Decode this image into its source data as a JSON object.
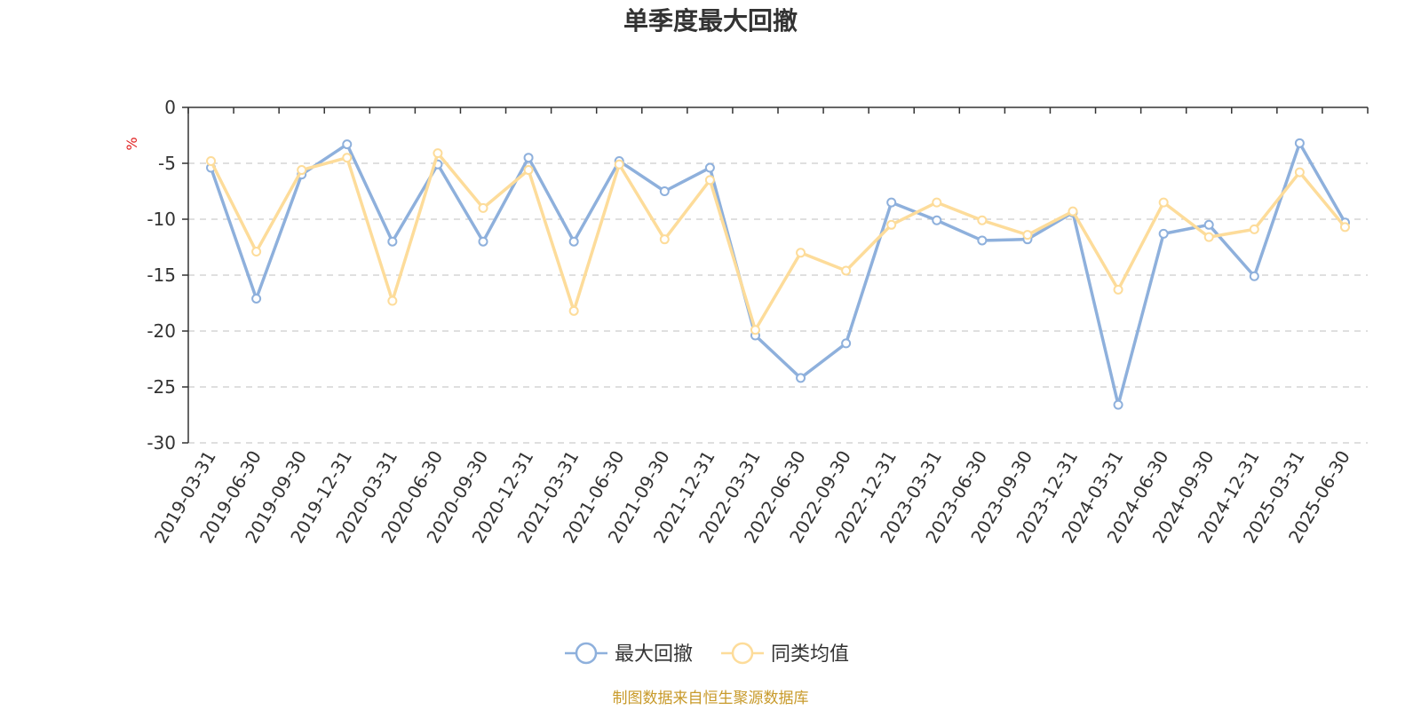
{
  "title": "单季度最大回撤",
  "y_unit": "%",
  "source": "制图数据来自恒生聚源数据库",
  "colors": {
    "series1": "#8eb0dc",
    "series2": "#fddc9a",
    "unit": "#e02020",
    "source": "#c89a2a",
    "grid": "#cccccc",
    "axis": "#333333"
  },
  "chart_data": {
    "type": "line",
    "title": "单季度最大回撤",
    "ylabel": "%",
    "ylim": [
      -30,
      0
    ],
    "yticks": [
      0,
      -5,
      -10,
      -15,
      -20,
      -25,
      -30
    ],
    "grid": true,
    "legend_position": "bottom",
    "categories": [
      "2019-03-31",
      "2019-06-30",
      "2019-09-30",
      "2019-12-31",
      "2020-03-31",
      "2020-06-30",
      "2020-09-30",
      "2020-12-31",
      "2021-03-31",
      "2021-06-30",
      "2021-09-30",
      "2021-12-31",
      "2022-03-31",
      "2022-06-30",
      "2022-09-30",
      "2022-12-31",
      "2023-03-31",
      "2023-06-30",
      "2023-09-30",
      "2023-12-31",
      "2024-03-31",
      "2024-06-30",
      "2024-09-30",
      "2024-12-31",
      "2025-03-31",
      "2025-06-30"
    ],
    "series": [
      {
        "name": "最大回撤",
        "values": [
          -5.4,
          -17.1,
          -6.0,
          -3.3,
          -12.0,
          -5.1,
          -12.0,
          -4.5,
          -12.0,
          -4.8,
          -7.5,
          -5.4,
          -20.4,
          -24.2,
          -21.1,
          -8.5,
          -10.1,
          -11.9,
          -11.8,
          -9.4,
          -26.6,
          -11.3,
          -10.5,
          -15.1,
          -3.2,
          -10.3
        ]
      },
      {
        "name": "同类均值",
        "values": [
          -4.8,
          -12.9,
          -5.6,
          -4.5,
          -17.3,
          -4.1,
          -9.0,
          -5.6,
          -18.2,
          -5.1,
          -11.8,
          -6.5,
          -19.9,
          -13.0,
          -14.6,
          -10.5,
          -8.5,
          -10.1,
          -11.4,
          -9.3,
          -16.3,
          -8.5,
          -11.6,
          -10.9,
          -5.8,
          -10.7
        ]
      }
    ]
  }
}
